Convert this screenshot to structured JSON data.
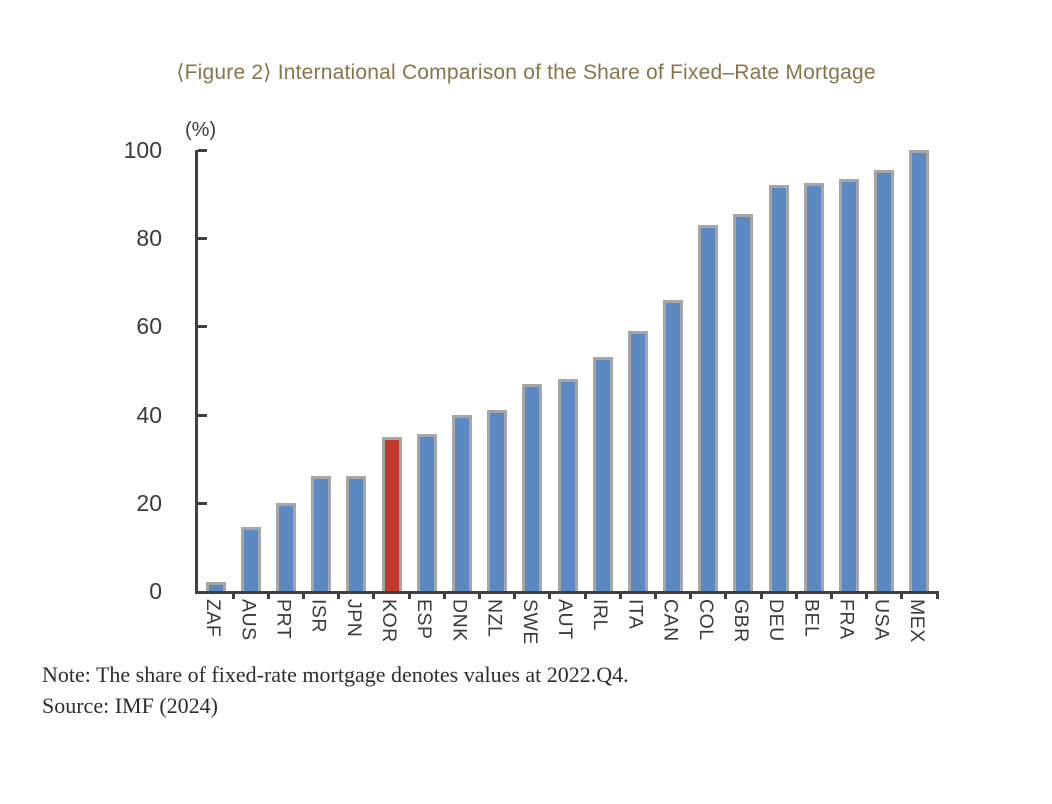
{
  "figure": {
    "title": "⟨Figure 2⟩ International Comparison of the Share of Fixed–Rate Mortgage",
    "title_color": "#86754a",
    "note": "Note: The share of fixed-rate mortgage denotes values at 2022.Q4.",
    "source": "Source: IMF (2024)"
  },
  "chart_data": {
    "type": "bar",
    "title": "International Comparison of the Share of Fixed-Rate Mortgage",
    "unit_label": "(%)",
    "xlabel": "",
    "ylabel": "(%)",
    "ylim": [
      0,
      100
    ],
    "yticks": [
      0,
      20,
      40,
      60,
      80,
      100
    ],
    "grid": false,
    "legend": "none",
    "categories": [
      "ZAF",
      "AUS",
      "PRT",
      "ISR",
      "JPN",
      "KOR",
      "ESP",
      "DNK",
      "NZL",
      "SWE",
      "AUT",
      "IRL",
      "ITA",
      "CAN",
      "COL",
      "GBR",
      "DEU",
      "BEL",
      "FRA",
      "USA",
      "MEX"
    ],
    "values": [
      2,
      14.5,
      20,
      26,
      26,
      35,
      35.5,
      40,
      41,
      47,
      48,
      53,
      59,
      66,
      83,
      85.5,
      92,
      92.5,
      93.5,
      95.5,
      100
    ],
    "highlight_category": "KOR",
    "bar_color": "#5b89c4",
    "highlight_color": "#c0392b",
    "bar_border_color": "#a6a6a6",
    "axis_color": "#404040"
  }
}
